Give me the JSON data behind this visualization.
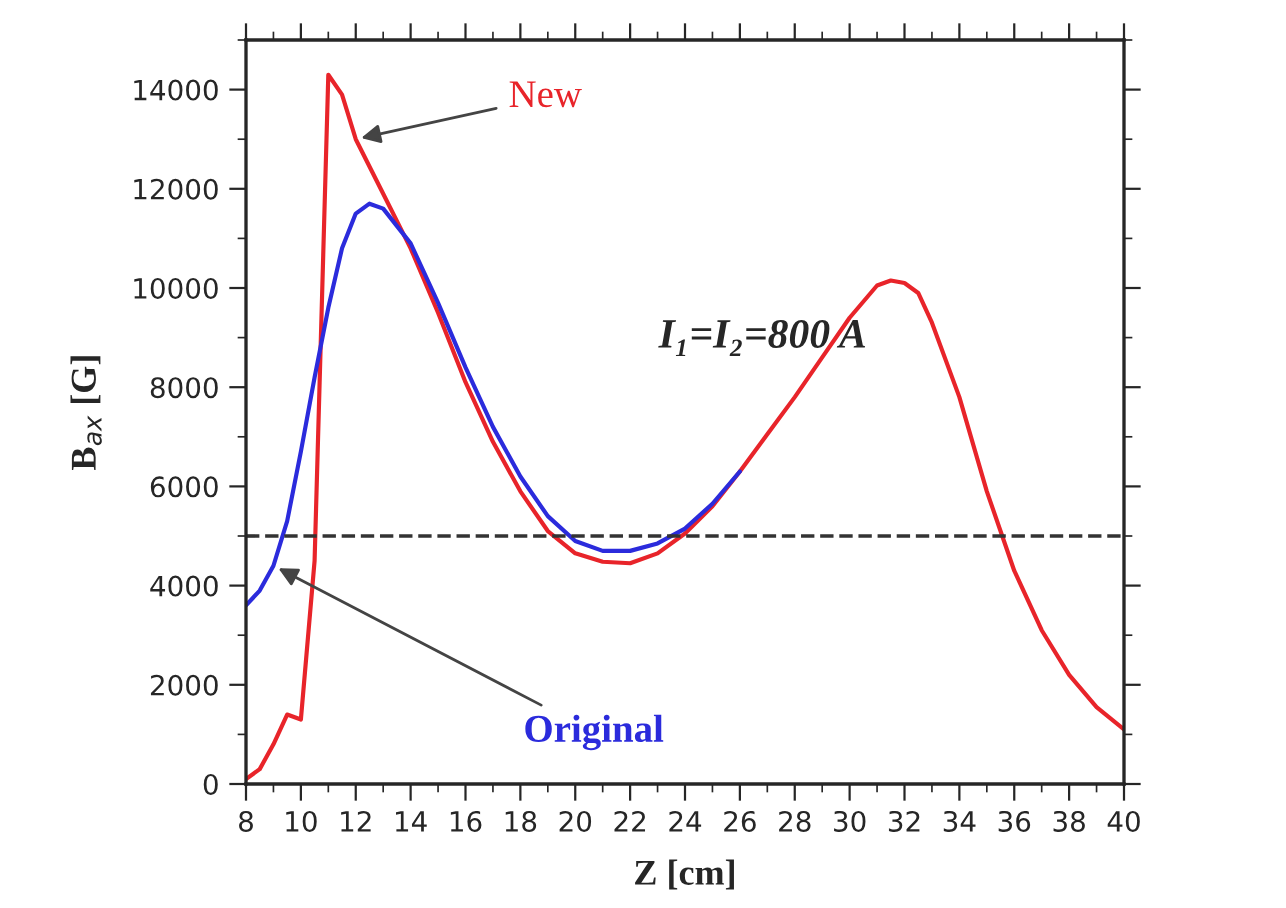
{
  "chart_data": {
    "type": "line",
    "xlabel": "Z [cm]",
    "ylabel": "B$_{ax}$ [G]",
    "xlim": [
      8,
      40
    ],
    "xticks": [
      8,
      10,
      12,
      14,
      16,
      18,
      20,
      22,
      24,
      26,
      28,
      30,
      32,
      34,
      36,
      38,
      40
    ],
    "ylim": [
      0,
      15000
    ],
    "yticks": [
      0,
      2000,
      4000,
      6000,
      8000,
      10000,
      12000,
      14000
    ],
    "grid": false,
    "legend": false,
    "marker": "none",
    "line_style": "solid",
    "series": [
      {
        "name": "New",
        "color": "#e8242a",
        "x": [
          8,
          8.5,
          9,
          9.5,
          10,
          10.5,
          11,
          11.5,
          12,
          13,
          14,
          15,
          16,
          17,
          18,
          19,
          20,
          21,
          22,
          23,
          24,
          25,
          26,
          27,
          28,
          29,
          30,
          31,
          31.5,
          32,
          32.5,
          33,
          34,
          35,
          36,
          37,
          38,
          39,
          40
        ],
        "values": [
          100,
          300,
          800,
          1400,
          1300,
          4500,
          14300,
          13900,
          13000,
          11900,
          10800,
          9500,
          8100,
          6900,
          5900,
          5100,
          4650,
          4480,
          4450,
          4650,
          5050,
          5600,
          6300,
          7050,
          7800,
          8600,
          9400,
          10050,
          10150,
          10100,
          9900,
          9300,
          7800,
          5900,
          4300,
          3100,
          2200,
          1550,
          1100
        ]
      },
      {
        "name": "Original",
        "color": "#2b2bdc",
        "x": [
          8,
          8.5,
          9,
          9.5,
          10,
          10.5,
          11,
          11.5,
          12,
          12.5,
          13,
          14,
          15,
          16,
          17,
          18,
          19,
          20,
          21,
          22,
          23,
          24,
          25,
          26
        ],
        "values": [
          3600,
          3900,
          4400,
          5300,
          6700,
          8200,
          9600,
          10800,
          11500,
          11700,
          11600,
          10900,
          9700,
          8400,
          7200,
          6200,
          5400,
          4900,
          4700,
          4700,
          4850,
          5150,
          5650,
          6300
        ]
      }
    ],
    "ref_lines": [
      {
        "axis": "y",
        "value": 5000,
        "color": "#333333",
        "line_style": "dashed"
      }
    ],
    "annotations": [
      "I₁=I₂=800 A"
    ]
  }
}
